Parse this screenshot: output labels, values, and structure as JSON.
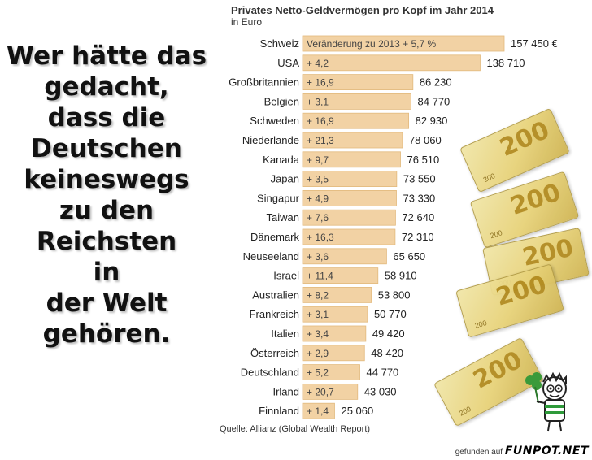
{
  "headline_lines": [
    "Wer hätte das",
    "gedacht,",
    "dass die",
    "Deutschen",
    "keineswegs",
    "zu den",
    "Reichsten",
    "in",
    "der Welt",
    "gehören."
  ],
  "banknotes": {
    "label": "200",
    "mini": "200"
  },
  "credit": {
    "prefix": "gefunden auf",
    "brand": "FUNPOT.NET"
  },
  "colors": {
    "bar": "#f2d2a4",
    "bar_edge": "#e2b97d",
    "text": "#222222"
  },
  "chart_data": {
    "type": "bar",
    "orientation": "horizontal",
    "title": "Privates Netto-Geldvermögen pro Kopf im Jahr 2014",
    "unit_label": "in Euro",
    "change_header": "Veränderung zu 2013",
    "source": "Quelle: Allianz (Global Wealth Report)",
    "categories": [
      "Schweiz",
      "USA",
      "Großbritannien",
      "Belgien",
      "Schweden",
      "Niederlande",
      "Kanada",
      "Japan",
      "Singapur",
      "Taiwan",
      "Dänemark",
      "Neuseeland",
      "Israel",
      "Australien",
      "Frankreich",
      "Italien",
      "Österreich",
      "Deutschland",
      "Irland",
      "Finnland"
    ],
    "values": [
      157450,
      138710,
      86230,
      84770,
      82930,
      78060,
      76510,
      73550,
      73330,
      72640,
      72310,
      65650,
      58910,
      53800,
      50770,
      49420,
      48420,
      44770,
      43030,
      25060
    ],
    "value_labels": [
      "157 450 €",
      "138 710",
      "86 230",
      "84 770",
      "82 930",
      "78 060",
      "76 510",
      "73 550",
      "73 330",
      "72 640",
      "72 310",
      "65 650",
      "58 910",
      "53 800",
      "50 770",
      "49 420",
      "48 420",
      "44 770",
      "43 030",
      "25 060"
    ],
    "change_labels": [
      "+ 5,7 %",
      "+ 4,2",
      "+ 16,9",
      "+ 3,1",
      "+ 16,9",
      "+ 21,3",
      "+ 9,7",
      "+ 3,5",
      "+ 4,9",
      "+ 7,6",
      "+ 16,3",
      "+ 3,6",
      "+ 11,4",
      "+ 8,2",
      "+ 3,1",
      "+ 3,4",
      "+ 2,9",
      "+ 5,2",
      "+ 20,7",
      "+ 1,4"
    ],
    "xlim": [
      0,
      157450
    ]
  }
}
